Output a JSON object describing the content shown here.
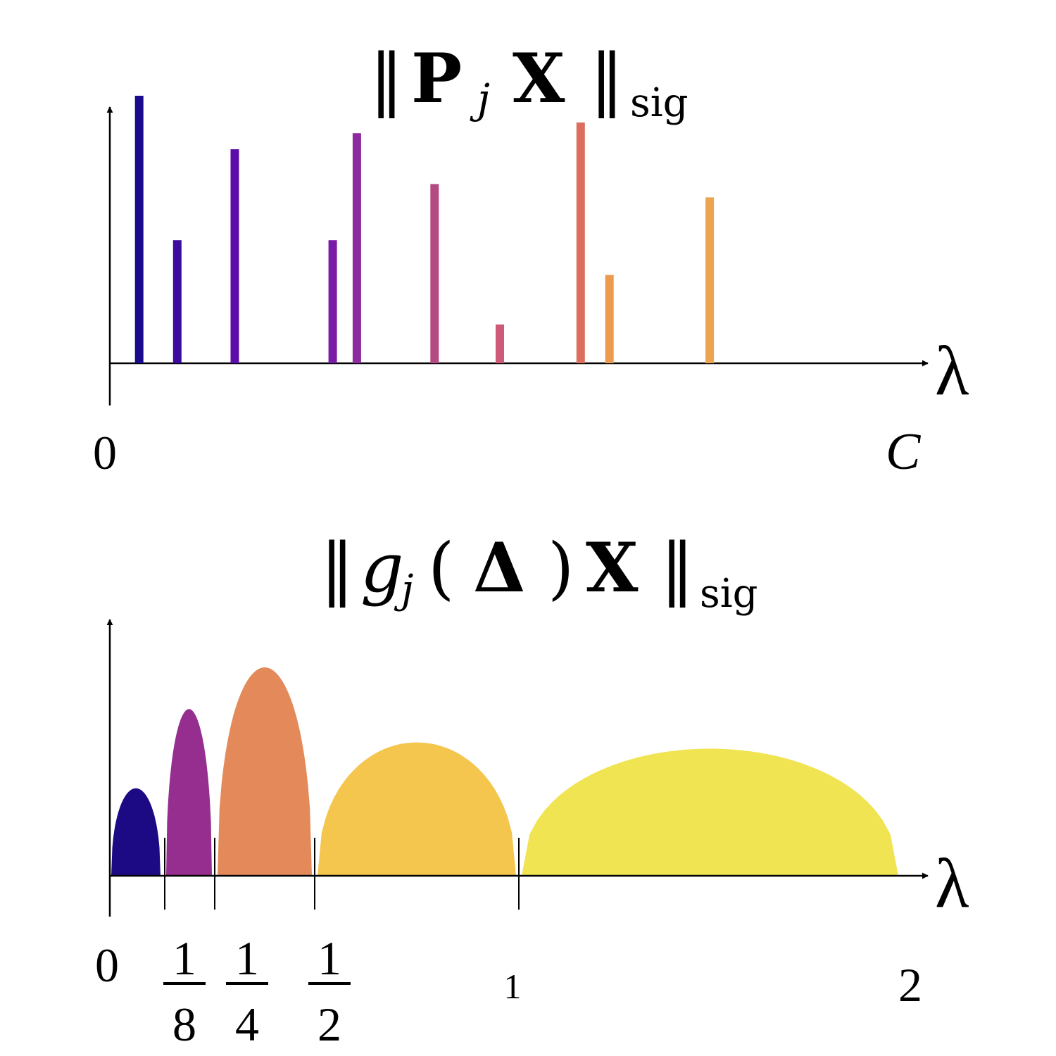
{
  "top_panel": {
    "title": {
      "norm_bars_left": "‖",
      "operator": "P",
      "subscript_j": "j",
      "variable": "X",
      "norm_bars_right": "‖",
      "subscript_sig": "sig"
    },
    "axis_label": "λ",
    "origin_label": "0",
    "end_label": "C"
  },
  "bottom_panel": {
    "title": {
      "norm_bars_left": "‖",
      "func": "g",
      "subscript_j": "j",
      "open_paren": "(",
      "operator": "Δ",
      "close_paren": ")",
      "variable": "X",
      "norm_bars_right": "‖",
      "subscript_sig": "sig"
    },
    "axis_label": "λ",
    "ticks": [
      {
        "num": "0"
      },
      {
        "num": "1",
        "den": "8"
      },
      {
        "num": "1",
        "den": "4"
      },
      {
        "num": "1",
        "den": "2"
      },
      {
        "num": "1"
      },
      {
        "num": "2"
      }
    ]
  },
  "chart_data": [
    {
      "type": "bar",
      "title": "‖P_j X‖_sig",
      "xlabel": "λ",
      "xlim": [
        0,
        1
      ],
      "ylim": [
        0,
        1
      ],
      "x_tick_labels": [
        "0",
        "C"
      ],
      "grid": false,
      "bars": [
        {
          "x": 0.036,
          "value": 1.0,
          "color": "#1a0a8c"
        },
        {
          "x": 0.085,
          "value": 0.46,
          "color": "#3c0a9e"
        },
        {
          "x": 0.159,
          "value": 0.8,
          "color": "#5c0ca8"
        },
        {
          "x": 0.285,
          "value": 0.46,
          "color": "#7a1ba6"
        },
        {
          "x": 0.316,
          "value": 0.86,
          "color": "#8e2aa0"
        },
        {
          "x": 0.416,
          "value": 0.67,
          "color": "#b44a82"
        },
        {
          "x": 0.5,
          "value": 0.145,
          "color": "#cc5a78"
        },
        {
          "x": 0.604,
          "value": 0.9,
          "color": "#dc6e5e"
        },
        {
          "x": 0.641,
          "value": 0.33,
          "color": "#ec9a4e"
        },
        {
          "x": 0.77,
          "value": 0.62,
          "color": "#eca44e"
        }
      ]
    },
    {
      "type": "area",
      "title": "‖g_j(Δ)X‖_sig",
      "xlabel": "λ",
      "x_tick_labels": [
        "0",
        "1/8",
        "1/4",
        "1/2",
        "1",
        "2"
      ],
      "ylim": [
        0,
        1
      ],
      "grid": false,
      "bumps": [
        {
          "start": "0",
          "end": "1/8",
          "peak": 0.42,
          "color": "#1c0a84"
        },
        {
          "start": "1/8",
          "end": "1/4",
          "peak": 0.8,
          "color": "#952e8e"
        },
        {
          "start": "1/4",
          "end": "1/2",
          "peak": 1.0,
          "color": "#e48a5a"
        },
        {
          "start": "1/2",
          "end": "1",
          "peak": 0.64,
          "color": "#f4c64e"
        },
        {
          "start": "1",
          "end": "2",
          "peak": 0.61,
          "color": "#f0e452"
        }
      ]
    }
  ]
}
